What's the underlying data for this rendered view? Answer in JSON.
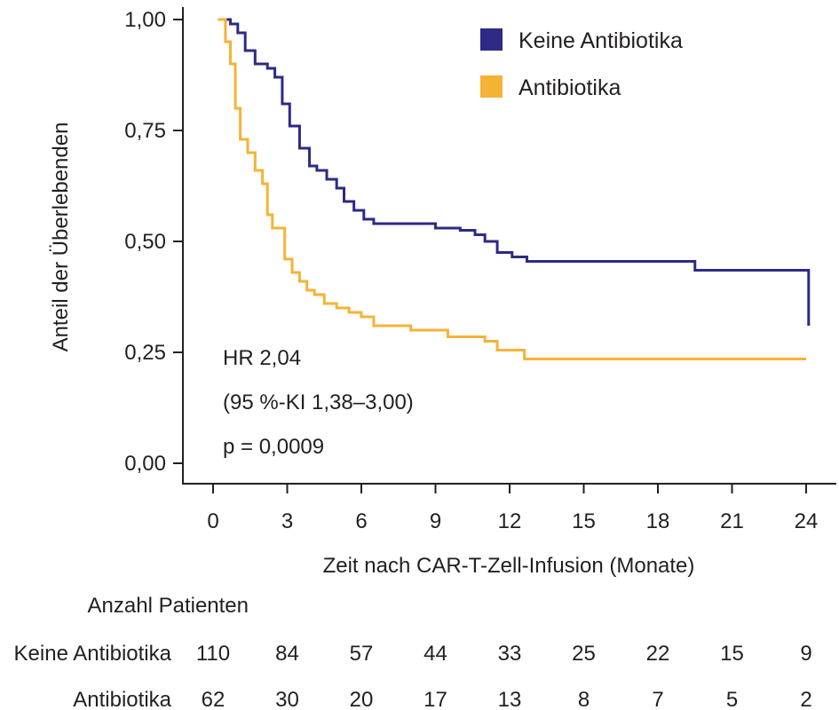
{
  "chart_data": {
    "type": "line",
    "title": "",
    "xlabel": "Zeit nach CAR-T-Zell-Infusion (Monate)",
    "ylabel": "Anteil der Überlebenden",
    "xlim": [
      0,
      24
    ],
    "ylim": [
      0,
      1
    ],
    "x_ticks": [
      0,
      3,
      6,
      9,
      12,
      15,
      18,
      21,
      24
    ],
    "x_tick_labels": [
      "0",
      "3",
      "6",
      "9",
      "12",
      "15",
      "18",
      "21",
      "24"
    ],
    "y_ticks": [
      0,
      0.25,
      0.5,
      0.75,
      1.0
    ],
    "y_tick_labels": [
      "0,00",
      "0,25",
      "0,50",
      "0,75",
      "1,00"
    ],
    "legend_position": "top-right",
    "series": [
      {
        "name": "Keine Antibiotika",
        "color": "#2e2a86",
        "step": true,
        "x": [
          0.2,
          0.7,
          1.0,
          1.3,
          1.7,
          2.2,
          2.5,
          2.8,
          3.1,
          3.5,
          3.9,
          4.2,
          4.6,
          5.0,
          5.3,
          5.7,
          6.1,
          6.5,
          9.0,
          10.0,
          10.6,
          11.0,
          11.5,
          12.1,
          12.7,
          19.5,
          24.1
        ],
        "y": [
          1.0,
          0.99,
          0.97,
          0.93,
          0.9,
          0.89,
          0.87,
          0.81,
          0.76,
          0.71,
          0.67,
          0.66,
          0.64,
          0.62,
          0.59,
          0.57,
          0.55,
          0.54,
          0.53,
          0.525,
          0.515,
          0.5,
          0.475,
          0.465,
          0.455,
          0.435,
          0.31
        ]
      },
      {
        "name": "Antibiotika",
        "color": "#f5b335",
        "step": true,
        "x": [
          0.2,
          0.5,
          0.7,
          0.9,
          1.1,
          1.4,
          1.7,
          2.0,
          2.2,
          2.4,
          2.7,
          2.9,
          3.2,
          3.5,
          3.8,
          4.1,
          4.5,
          5.0,
          5.5,
          6.0,
          6.5,
          8.0,
          9.5,
          11.0,
          11.5,
          12.6,
          24.0
        ],
        "y": [
          1.0,
          0.95,
          0.9,
          0.8,
          0.73,
          0.7,
          0.66,
          0.63,
          0.56,
          0.53,
          0.53,
          0.46,
          0.43,
          0.41,
          0.39,
          0.38,
          0.36,
          0.35,
          0.34,
          0.33,
          0.31,
          0.3,
          0.285,
          0.275,
          0.255,
          0.235,
          0.235
        ]
      }
    ],
    "annotations": {
      "hr": "HR 2,04",
      "ci": "(95 %-KI 1,38–3,00)",
      "p": "p = 0,0009"
    },
    "risk_table": {
      "title": "Anzahl Patienten",
      "rows": [
        {
          "label": "Keine Antibiotika",
          "values": [
            "110",
            "84",
            "57",
            "44",
            "33",
            "25",
            "22",
            "15",
            "9"
          ]
        },
        {
          "label": "Antibiotika",
          "values": [
            "62",
            "30",
            "20",
            "17",
            "13",
            "8",
            "7",
            "5",
            "2"
          ]
        }
      ]
    }
  }
}
